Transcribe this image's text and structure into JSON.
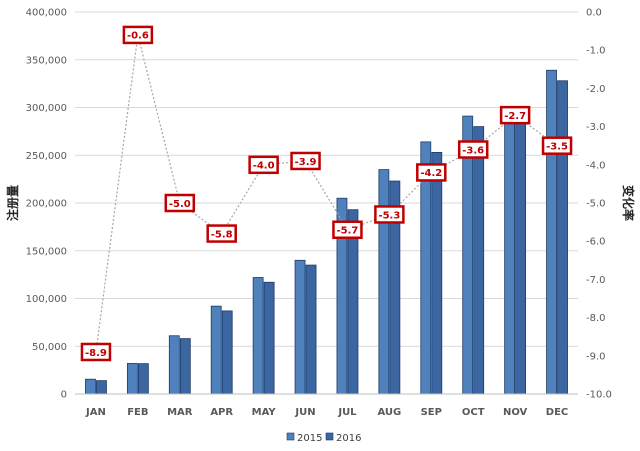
{
  "chart_data": {
    "type": "bar",
    "categories": [
      "JAN",
      "FEB",
      "MAR",
      "APR",
      "MAY",
      "JUN",
      "JUL",
      "AUG",
      "SEP",
      "OCT",
      "NOV",
      "DEC"
    ],
    "series": [
      {
        "name": "2015",
        "values": [
          15500,
          32000,
          61000,
          92000,
          122000,
          140000,
          205000,
          235000,
          264000,
          291000,
          301000,
          339000
        ],
        "color": "#4f81bd"
      },
      {
        "name": "2016",
        "values": [
          14000,
          31800,
          58000,
          87000,
          117000,
          135000,
          193000,
          223000,
          253000,
          280000,
          293000,
          328000
        ],
        "color": "#3b66a2"
      }
    ],
    "line_series": {
      "values": [
        -8.9,
        -0.6,
        -5.0,
        -5.8,
        -4.0,
        -3.9,
        -5.7,
        -5.3,
        -4.2,
        -3.6,
        -2.7,
        -3.5
      ],
      "labels": [
        "-8.9",
        "-0.6",
        "-5.0",
        "-5.8",
        "-4.0",
        "-3.9",
        "-5.7",
        "-5.3",
        "-4.2",
        "-3.6",
        "-2.7",
        "-3.5"
      ],
      "style": "dotted",
      "color": "#a6a6a6",
      "label_color": "#c00000",
      "axis": "secondary"
    },
    "ylabel": "注册量",
    "y2label": "变化率",
    "ylim": [
      0,
      400000
    ],
    "y2lim": [
      -10,
      0
    ],
    "yticks": [
      "0",
      "50,000",
      "100,000",
      "150,000",
      "200,000",
      "250,000",
      "300,000",
      "350,000",
      "400,000"
    ],
    "y2ticks": [
      "0.0",
      "-1.0",
      "-2.0",
      "-3.0",
      "-4.0",
      "-5.0",
      "-6.0",
      "-7.0",
      "-8.0",
      "-9.0",
      "-10.0"
    ],
    "grid": true,
    "legend": "bottom-center"
  }
}
